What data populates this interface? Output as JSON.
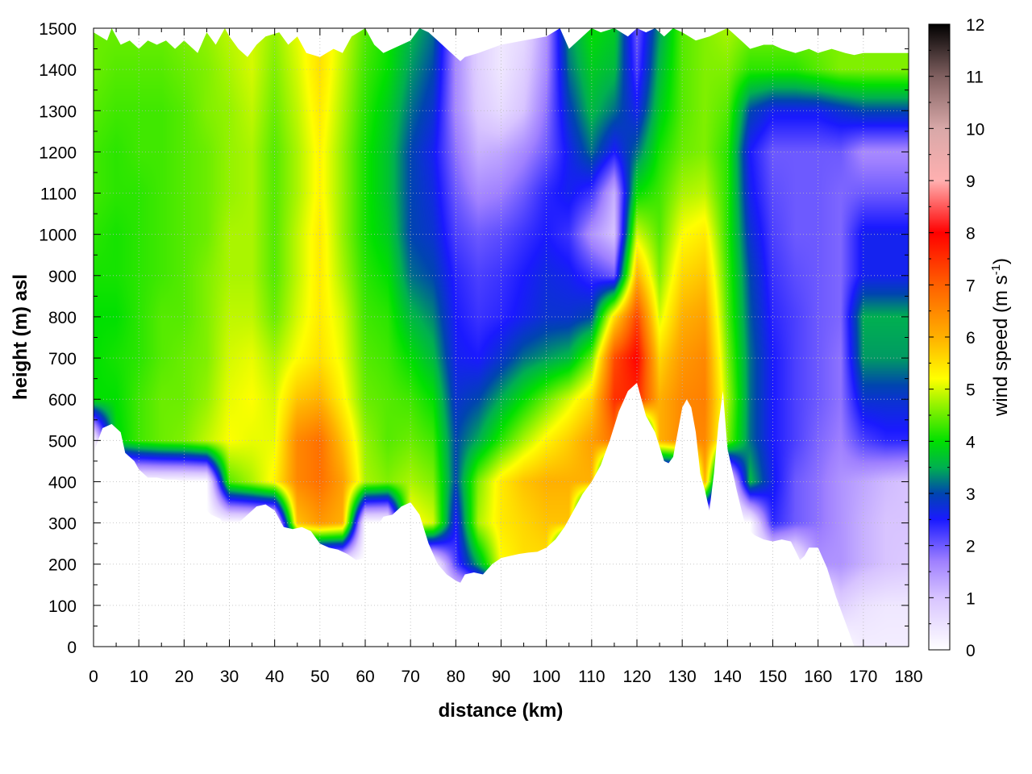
{
  "chart_data": {
    "type": "heatmap",
    "title": "",
    "xlabel": "distance (km)",
    "ylabel": "height (m) asl",
    "xlim": [
      0,
      180
    ],
    "ylim": [
      0,
      1500
    ],
    "x_ticks": [
      0,
      10,
      20,
      30,
      40,
      50,
      60,
      70,
      80,
      90,
      100,
      110,
      120,
      130,
      140,
      150,
      160,
      170,
      180
    ],
    "x_tick_labels": [
      "0",
      "10",
      "20",
      "30",
      "40",
      "50",
      "60",
      "70",
      "80",
      "90",
      "100",
      "110",
      "120",
      "130",
      "140",
      "150",
      "160",
      "170",
      "180"
    ],
    "y_ticks": [
      0,
      100,
      200,
      300,
      400,
      500,
      600,
      700,
      800,
      900,
      1000,
      1100,
      1200,
      1300,
      1400,
      1500
    ],
    "y_tick_labels": [
      "0",
      "100",
      "200",
      "300",
      "400",
      "500",
      "600",
      "700",
      "800",
      "900",
      "1000",
      "1100",
      "1200",
      "1300",
      "1400",
      "1500"
    ],
    "grid": true,
    "colorbar": {
      "label_prefix": "wind speed (m s",
      "label_sup": "-1",
      "label_suffix": ")",
      "range": [
        0,
        12
      ],
      "ticks": [
        0,
        1,
        2,
        3,
        4,
        5,
        6,
        7,
        8,
        9,
        10,
        11,
        12
      ],
      "tick_labels": [
        "0",
        "1",
        "2",
        "3",
        "4",
        "5",
        "6",
        "7",
        "8",
        "9",
        "10",
        "11",
        "12"
      ],
      "stops": [
        {
          "value": 0,
          "color": "#ffffff"
        },
        {
          "value": 1,
          "color": "#d8c4ff"
        },
        {
          "value": 1.7,
          "color": "#9f80ff"
        },
        {
          "value": 2.5,
          "color": "#1a1aff"
        },
        {
          "value": 3,
          "color": "#0045b0"
        },
        {
          "value": 3.5,
          "color": "#00b050"
        },
        {
          "value": 4,
          "color": "#00e000"
        },
        {
          "value": 4.6,
          "color": "#80f000"
        },
        {
          "value": 5.2,
          "color": "#ffff00"
        },
        {
          "value": 6,
          "color": "#ffb000"
        },
        {
          "value": 7,
          "color": "#ff6000"
        },
        {
          "value": 8,
          "color": "#ff0000"
        },
        {
          "value": 9,
          "color": "#ffb0b0"
        },
        {
          "value": 10,
          "color": "#d8a8a8"
        },
        {
          "value": 11,
          "color": "#806060"
        },
        {
          "value": 12,
          "color": "#000000"
        }
      ]
    },
    "terrain": {
      "x": [
        0,
        2,
        4,
        6,
        7,
        9,
        10,
        12,
        14,
        16,
        18,
        20,
        22,
        24,
        26,
        28,
        29,
        30,
        32,
        34,
        36,
        38,
        40,
        42,
        44,
        46,
        48,
        50,
        52,
        54,
        56,
        58,
        60,
        62,
        64,
        66,
        68,
        70,
        72,
        74,
        76,
        78,
        80,
        81,
        82,
        84,
        86,
        88,
        90,
        92,
        94,
        96,
        98,
        100,
        102,
        104,
        106,
        108,
        110,
        112,
        114,
        116,
        118,
        120,
        122,
        124,
        126,
        127,
        128,
        130,
        131,
        132,
        133,
        134,
        135,
        136,
        137,
        138,
        139,
        140,
        142,
        144,
        146,
        148,
        150,
        152,
        154,
        156,
        157,
        158,
        160,
        162,
        164,
        166,
        168,
        170,
        172,
        174,
        176,
        178,
        180
      ],
      "y": [
        470,
        530,
        540,
        520,
        470,
        450,
        430,
        410,
        410,
        405,
        405,
        400,
        380,
        340,
        320,
        310,
        290,
        275,
        300,
        320,
        340,
        345,
        330,
        290,
        285,
        290,
        280,
        250,
        240,
        235,
        225,
        210,
        215,
        280,
        315,
        320,
        340,
        350,
        320,
        250,
        200,
        175,
        160,
        155,
        175,
        180,
        175,
        200,
        215,
        220,
        225,
        228,
        230,
        240,
        260,
        290,
        330,
        370,
        400,
        440,
        500,
        570,
        620,
        640,
        560,
        520,
        450,
        445,
        460,
        580,
        600,
        580,
        520,
        420,
        380,
        330,
        420,
        540,
        620,
        480,
        380,
        290,
        270,
        260,
        255,
        260,
        255,
        210,
        220,
        240,
        240,
        190,
        120,
        60,
        0,
        0,
        0,
        0,
        0,
        0,
        0
      ]
    },
    "top_boundary": {
      "x": [
        0,
        3,
        4,
        6,
        8,
        10,
        12,
        14,
        16,
        18,
        20,
        23,
        25,
        27,
        29,
        30,
        32,
        34,
        36,
        38,
        41,
        43,
        45,
        47,
        50,
        53,
        55,
        57,
        60,
        62,
        64,
        66,
        68,
        70,
        72,
        74,
        76,
        78,
        80,
        81,
        82,
        85,
        90,
        95,
        100,
        103,
        105,
        108,
        110,
        112,
        115,
        118,
        120,
        122,
        124,
        126,
        128,
        130,
        133,
        136,
        140,
        143,
        145,
        148,
        150,
        152,
        155,
        158,
        160,
        163,
        166,
        168,
        170,
        172,
        175,
        178,
        180
      ],
      "y": [
        1490,
        1470,
        1500,
        1460,
        1470,
        1450,
        1470,
        1460,
        1470,
        1450,
        1470,
        1440,
        1490,
        1460,
        1500,
        1480,
        1450,
        1430,
        1460,
        1480,
        1490,
        1460,
        1480,
        1440,
        1430,
        1450,
        1440,
        1480,
        1500,
        1460,
        1440,
        1450,
        1460,
        1470,
        1500,
        1490,
        1470,
        1450,
        1430,
        1420,
        1430,
        1440,
        1460,
        1470,
        1480,
        1500,
        1450,
        1480,
        1500,
        1490,
        1500,
        1480,
        1500,
        1490,
        1500,
        1480,
        1500,
        1490,
        1470,
        1480,
        1500,
        1470,
        1450,
        1460,
        1460,
        1450,
        1440,
        1450,
        1440,
        1450,
        1440,
        1435,
        1440,
        1440,
        1440,
        1440,
        1440
      ]
    },
    "wind_field": {
      "distance_km": [
        0,
        5,
        10,
        15,
        20,
        25,
        30,
        35,
        40,
        45,
        50,
        55,
        60,
        65,
        70,
        75,
        80,
        85,
        90,
        95,
        100,
        105,
        110,
        115,
        120,
        125,
        130,
        135,
        140,
        145,
        150,
        155,
        160,
        165,
        170,
        175,
        180
      ],
      "height_m": [
        0,
        100,
        200,
        300,
        400,
        500,
        600,
        700,
        800,
        900,
        1000,
        1100,
        1200,
        1300,
        1400,
        1500
      ],
      "speed_ms": [
        [
          0,
          0,
          0,
          0,
          0,
          0,
          0,
          0,
          0,
          0,
          0,
          0,
          0,
          0,
          0,
          0,
          0,
          0,
          0,
          0,
          0,
          0,
          0,
          0,
          0,
          0,
          0,
          0,
          0,
          0,
          0,
          0,
          0,
          0,
          0.3,
          0.3,
          0.3
        ],
        [
          0,
          0,
          0,
          0,
          0,
          0,
          0,
          0,
          0,
          0,
          0,
          0,
          0,
          0,
          0,
          0,
          0,
          0,
          0,
          0,
          0,
          0,
          0,
          0,
          0,
          0,
          0,
          0,
          0,
          0,
          0,
          0,
          0,
          0.8,
          0.5,
          0.4,
          0.4
        ],
        [
          0,
          0,
          0,
          0,
          0,
          0,
          0,
          0,
          0,
          0,
          0,
          0,
          0,
          0,
          0,
          0,
          2.2,
          3.5,
          5.2,
          5.5,
          5.5,
          0,
          0,
          0,
          0,
          0,
          0,
          0,
          0,
          0,
          0,
          0,
          1.5,
          1.5,
          1.2,
          1.0,
          0.9
        ],
        [
          0,
          0,
          0,
          0,
          0,
          0,
          0,
          0,
          0,
          5.8,
          6.3,
          6.0,
          0,
          0,
          5.3,
          5.0,
          2.5,
          4.8,
          5.4,
          5.6,
          5.8,
          5.8,
          0,
          0,
          0,
          0,
          0,
          0,
          0,
          0,
          2.4,
          2.0,
          1.8,
          1.5,
          1.2,
          1.0,
          1.0
        ],
        [
          0,
          0,
          0,
          0,
          0,
          0,
          4.4,
          4.8,
          5.3,
          6.5,
          6.8,
          6.2,
          4.8,
          4.6,
          4.8,
          4.6,
          3.0,
          4.6,
          5.4,
          5.8,
          6.0,
          6.0,
          6.0,
          0,
          0,
          0,
          0,
          6.0,
          0,
          3.6,
          2.6,
          2.0,
          1.8,
          1.5,
          1.3,
          1.1,
          1.0
        ],
        [
          0,
          3.9,
          4.3,
          4.5,
          4.6,
          4.9,
          5.2,
          5.1,
          5.1,
          6.5,
          6.8,
          5.8,
          4.7,
          4.4,
          4.5,
          4.3,
          3.0,
          3.5,
          4.2,
          4.8,
          5.3,
          5.7,
          6.2,
          6.8,
          0,
          6.0,
          6.5,
          6.5,
          4.6,
          3.2,
          2.5,
          2.2,
          1.9,
          1.7,
          2.2,
          2.4,
          2.4
        ],
        [
          4.0,
          4.0,
          4.3,
          4.5,
          4.5,
          4.7,
          5.1,
          5.2,
          5.0,
          5.8,
          6.0,
          5.3,
          4.5,
          4.4,
          4.3,
          4.0,
          2.8,
          3.0,
          3.5,
          4.0,
          4.5,
          5.0,
          5.6,
          7.5,
          7.6,
          6.0,
          6.5,
          6.6,
          4.8,
          3.2,
          2.5,
          2.2,
          2.0,
          1.8,
          2.8,
          2.8,
          2.8
        ],
        [
          4.0,
          4.1,
          4.2,
          4.4,
          4.5,
          4.6,
          5.0,
          5.1,
          4.8,
          5.2,
          5.5,
          5.1,
          4.4,
          4.3,
          4.0,
          3.6,
          2.6,
          2.5,
          2.8,
          3.2,
          3.4,
          3.6,
          4.5,
          7.2,
          8.0,
          5.6,
          6.3,
          6.5,
          4.6,
          3.2,
          2.5,
          2.2,
          2.0,
          1.8,
          3.4,
          3.4,
          3.4
        ],
        [
          4.0,
          4.0,
          4.2,
          4.4,
          4.4,
          4.6,
          4.9,
          4.9,
          4.5,
          5.0,
          5.4,
          5.0,
          4.3,
          4.2,
          3.6,
          3.3,
          2.5,
          2.3,
          2.4,
          2.6,
          2.8,
          2.8,
          3.0,
          5.5,
          7.3,
          5.0,
          6.0,
          6.2,
          4.4,
          3.1,
          2.4,
          2.2,
          2.0,
          1.9,
          3.5,
          3.5,
          3.5
        ],
        [
          4.1,
          4.1,
          4.2,
          4.3,
          4.4,
          4.6,
          4.8,
          4.8,
          4.4,
          4.9,
          5.4,
          4.8,
          4.2,
          4.0,
          3.2,
          3.0,
          2.4,
          2.2,
          2.3,
          2.5,
          2.7,
          2.6,
          2.3,
          2.0,
          6.0,
          4.6,
          5.6,
          5.8,
          4.3,
          3.0,
          2.3,
          2.1,
          2.0,
          1.9,
          2.6,
          2.6,
          2.6
        ],
        [
          4.2,
          4.1,
          4.2,
          4.3,
          4.4,
          4.5,
          4.8,
          4.8,
          4.4,
          4.9,
          5.4,
          4.7,
          4.1,
          3.8,
          3.0,
          2.8,
          2.2,
          2.0,
          2.1,
          2.3,
          2.5,
          2.3,
          1.5,
          1.0,
          5.0,
          4.4,
          5.2,
          5.4,
          4.2,
          2.8,
          2.2,
          2.0,
          2.0,
          1.9,
          2.6,
          2.6,
          2.6
        ],
        [
          4.3,
          4.2,
          4.2,
          4.3,
          4.4,
          4.5,
          4.7,
          4.8,
          4.4,
          4.8,
          5.3,
          4.7,
          4.1,
          3.7,
          3.0,
          2.7,
          2.0,
          1.6,
          1.7,
          2.0,
          2.4,
          2.6,
          2.3,
          1.2,
          4.0,
          4.3,
          4.8,
          4.9,
          4.2,
          2.6,
          2.1,
          2.0,
          2.0,
          1.9,
          2.0,
          2.0,
          2.0
        ],
        [
          4.3,
          4.2,
          4.3,
          4.3,
          4.4,
          4.5,
          4.7,
          4.8,
          4.4,
          4.8,
          5.3,
          4.7,
          4.1,
          3.7,
          3.0,
          2.6,
          1.8,
          1.2,
          1.3,
          1.6,
          2.0,
          2.6,
          3.2,
          2.5,
          3.2,
          4.1,
          4.5,
          4.6,
          4.2,
          2.5,
          2.0,
          2.0,
          2.0,
          2.0,
          1.6,
          1.6,
          1.6
        ],
        [
          4.4,
          4.3,
          4.3,
          4.3,
          4.4,
          4.6,
          4.7,
          4.9,
          4.5,
          4.9,
          5.4,
          4.8,
          4.2,
          3.8,
          3.2,
          2.8,
          1.6,
          0.9,
          0.6,
          1.0,
          1.8,
          2.9,
          3.6,
          3.2,
          2.6,
          3.8,
          4.4,
          4.6,
          4.4,
          3.0,
          2.6,
          2.6,
          2.6,
          2.8,
          3.0,
          3.0,
          3.0
        ],
        [
          4.5,
          4.4,
          4.4,
          4.4,
          4.5,
          4.6,
          4.8,
          5.0,
          4.6,
          5.0,
          5.5,
          4.9,
          4.3,
          4.0,
          3.4,
          3.0,
          1.6,
          0.8,
          0.4,
          0.8,
          1.6,
          3.2,
          3.8,
          3.6,
          2.2,
          3.6,
          4.4,
          4.6,
          4.6,
          4.2,
          4.2,
          4.2,
          4.4,
          4.6,
          4.6,
          4.6,
          4.6
        ],
        [
          4.5,
          4.5,
          4.5,
          4.5,
          4.6,
          4.7,
          4.9,
          5.0,
          4.7,
          5.1,
          5.5,
          5.0,
          4.4,
          4.1,
          3.6,
          3.2,
          1.6,
          0.8,
          0.4,
          0.6,
          1.5,
          3.4,
          4.0,
          3.8,
          2.0,
          3.4,
          4.4,
          4.6,
          4.8,
          4.6,
          4.6,
          4.6,
          4.6,
          4.6,
          4.6,
          4.6,
          4.6
        ]
      ]
    }
  }
}
